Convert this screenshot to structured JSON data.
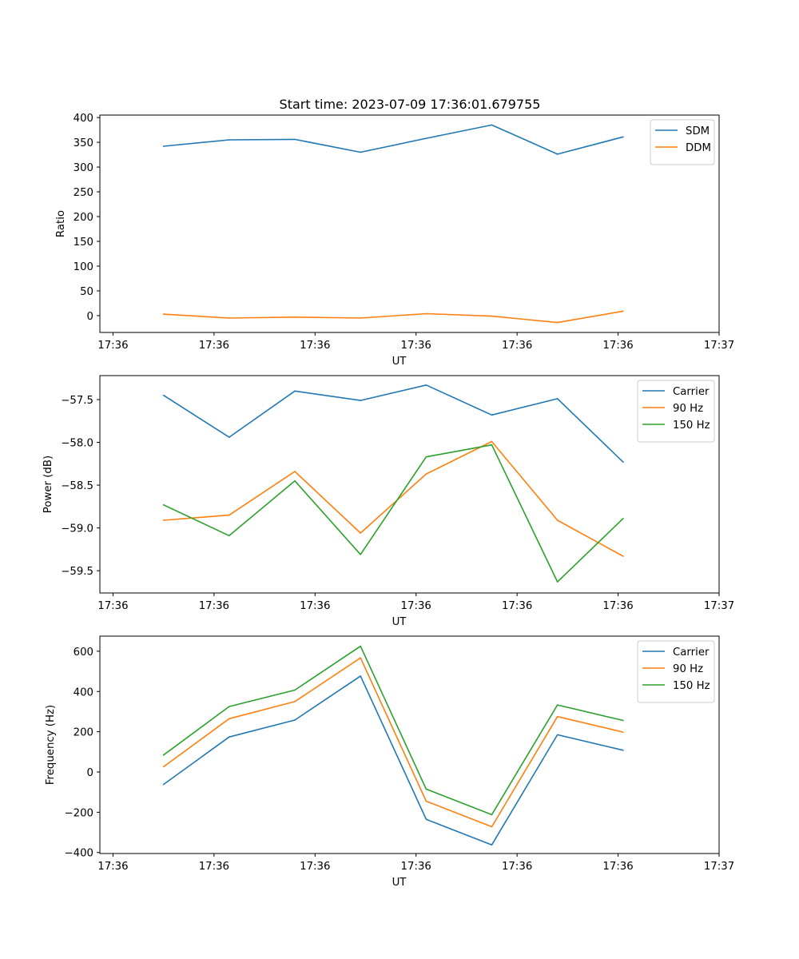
{
  "title": "Start time: 2023-07-09 17:36:01.679755",
  "chart_data": [
    {
      "type": "line",
      "title": "Start time: 2023-07-09 17:36:01.679755",
      "xlabel": "UT",
      "ylabel": "Ratio",
      "x": [
        0.5,
        1.15,
        1.8,
        2.45,
        3.1,
        3.75,
        4.4,
        5.05
      ],
      "x_tick_values": [
        0,
        1,
        2,
        3,
        4,
        5,
        6
      ],
      "x_tick_labels": [
        "17:36",
        "17:36",
        "17:36",
        "17:36",
        "17:36",
        "17:36",
        "17:37"
      ],
      "xlim": [
        -0.13,
        6.0
      ],
      "ylim": [
        -34,
        405
      ],
      "y_ticks": [
        0,
        50,
        100,
        150,
        200,
        250,
        300,
        350,
        400
      ],
      "y_tick_labels": [
        "0",
        "50",
        "100",
        "150",
        "200",
        "250",
        "300",
        "350",
        "400"
      ],
      "legend_position": "top-right",
      "series": [
        {
          "name": "SDM",
          "color": "#1f77b4",
          "values": [
            342,
            355,
            356,
            330,
            358,
            385,
            326,
            361
          ]
        },
        {
          "name": "DDM",
          "color": "#ff7f0e",
          "values": [
            3,
            -5,
            -3,
            -5,
            4,
            -1,
            -14,
            9
          ]
        }
      ]
    },
    {
      "type": "line",
      "title": "",
      "xlabel": "UT",
      "ylabel": "Power (dB)",
      "x": [
        0.5,
        1.15,
        1.8,
        2.45,
        3.1,
        3.75,
        4.4,
        5.05
      ],
      "x_tick_values": [
        0,
        1,
        2,
        3,
        4,
        5,
        6
      ],
      "x_tick_labels": [
        "17:36",
        "17:36",
        "17:36",
        "17:36",
        "17:36",
        "17:36",
        "17:37"
      ],
      "xlim": [
        -0.13,
        6.0
      ],
      "ylim": [
        -59.76,
        -57.22
      ],
      "y_ticks": [
        -59.5,
        -59.0,
        -58.5,
        -58.0,
        -57.5
      ],
      "y_tick_labels": [
        "−59.5",
        "−59.0",
        "−58.5",
        "−58.0",
        "−57.5"
      ],
      "legend_position": "top-right",
      "series": [
        {
          "name": "Carrier",
          "color": "#1f77b4",
          "values": [
            -57.45,
            -57.94,
            -57.4,
            -57.51,
            -57.33,
            -57.68,
            -57.49,
            -58.23
          ]
        },
        {
          "name": "90 Hz",
          "color": "#ff7f0e",
          "values": [
            -58.91,
            -58.85,
            -58.34,
            -59.06,
            -58.37,
            -57.99,
            -58.91,
            -59.33
          ]
        },
        {
          "name": "150 Hz",
          "color": "#2ca02c",
          "values": [
            -58.73,
            -59.09,
            -58.45,
            -59.31,
            -58.17,
            -58.03,
            -59.63,
            -58.89
          ]
        }
      ]
    },
    {
      "type": "line",
      "title": "",
      "xlabel": "UT",
      "ylabel": "Frequency (Hz)",
      "x": [
        0.5,
        1.15,
        1.8,
        2.45,
        3.1,
        3.75,
        4.4,
        5.05
      ],
      "x_tick_values": [
        0,
        1,
        2,
        3,
        4,
        5,
        6
      ],
      "x_tick_labels": [
        "17:36",
        "17:36",
        "17:36",
        "17:36",
        "17:36",
        "17:36",
        "17:37"
      ],
      "xlim": [
        -0.13,
        6.0
      ],
      "ylim": [
        -405,
        675
      ],
      "y_ticks": [
        -400,
        -200,
        0,
        200,
        400,
        600
      ],
      "y_tick_labels": [
        "−400",
        "−200",
        "0",
        "200",
        "400",
        "600"
      ],
      "legend_position": "top-right",
      "series": [
        {
          "name": "Carrier",
          "color": "#1f77b4",
          "values": [
            -62,
            174,
            258,
            477,
            -235,
            -362,
            185,
            108
          ]
        },
        {
          "name": "90 Hz",
          "color": "#ff7f0e",
          "values": [
            26,
            265,
            350,
            567,
            -145,
            -272,
            275,
            198
          ]
        },
        {
          "name": "150 Hz",
          "color": "#2ca02c",
          "values": [
            84,
            325,
            407,
            625,
            -85,
            -212,
            333,
            256
          ]
        }
      ]
    }
  ]
}
